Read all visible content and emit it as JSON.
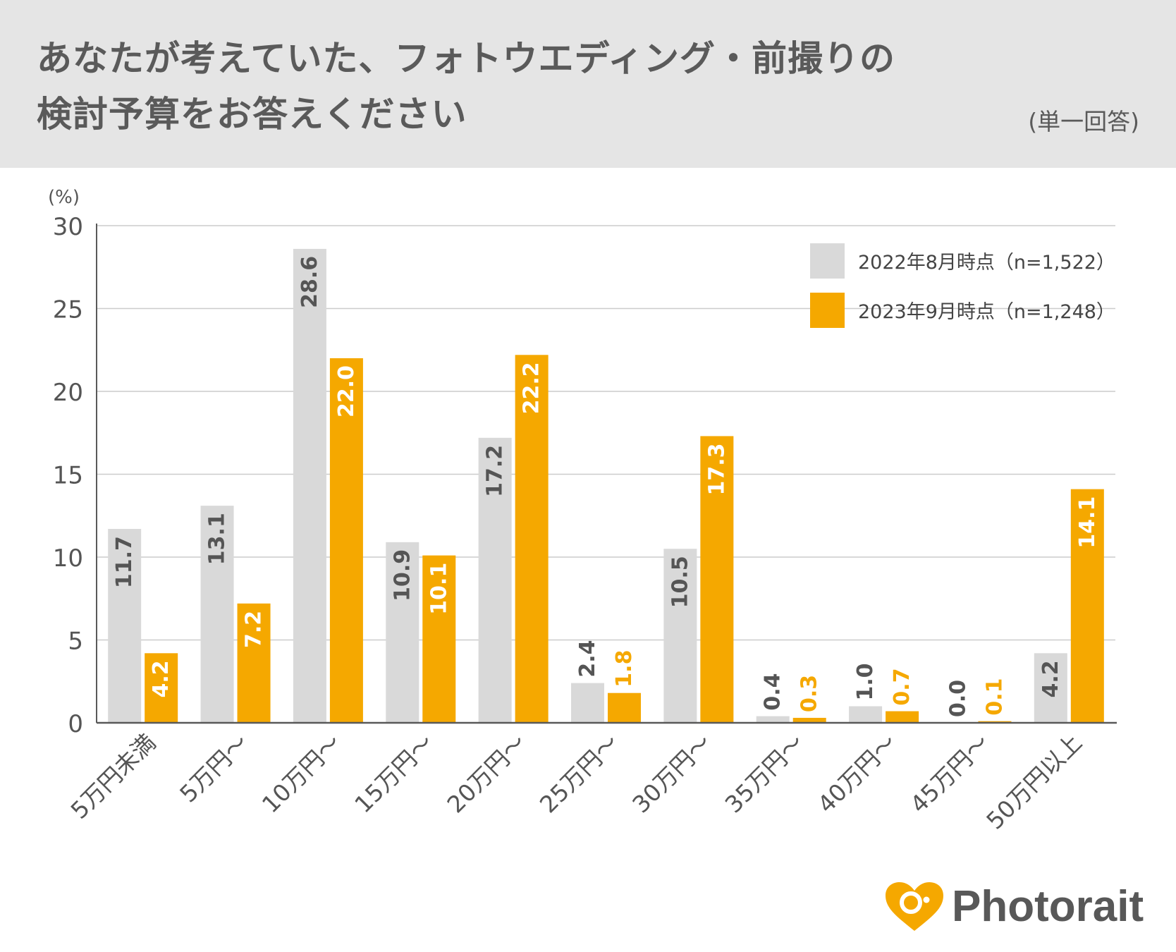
{
  "header": {
    "title_line1": "あなたが考えていた、フォトウエディング・前撮りの",
    "title_line2": "検討予算をお答えください",
    "note": "(単一回答)"
  },
  "colors": {
    "series1": "#d9d9d9",
    "series2": "#f5a800",
    "axis": "#595959",
    "grid": "#cccccc",
    "text": "#555555"
  },
  "chart_data": {
    "type": "bar",
    "title": "あなたが考えていた、フォトウエディング・前撮りの検討予算をお答えください",
    "ylabel": "(%)",
    "xlabel": "",
    "ylim": [
      0,
      30
    ],
    "yticks": [
      0,
      5,
      10,
      15,
      20,
      25,
      30
    ],
    "grid": true,
    "legend_position": "top-right",
    "categories": [
      "5万円未満",
      "5万円〜",
      "10万円〜",
      "15万円〜",
      "20万円〜",
      "25万円〜",
      "30万円〜",
      "35万円〜",
      "40万円〜",
      "45万円〜",
      "50万円以上"
    ],
    "series": [
      {
        "name": "2022年8月時点（n=1,522）",
        "values": [
          11.7,
          13.1,
          28.6,
          10.9,
          17.2,
          2.4,
          10.5,
          0.4,
          1.0,
          0.0,
          4.2
        ]
      },
      {
        "name": "2023年9月時点（n=1,248）",
        "values": [
          4.2,
          7.2,
          22.0,
          10.1,
          22.2,
          1.8,
          17.3,
          0.3,
          0.7,
          0.1,
          14.1
        ]
      }
    ]
  },
  "brand": {
    "name": "Photorait"
  }
}
